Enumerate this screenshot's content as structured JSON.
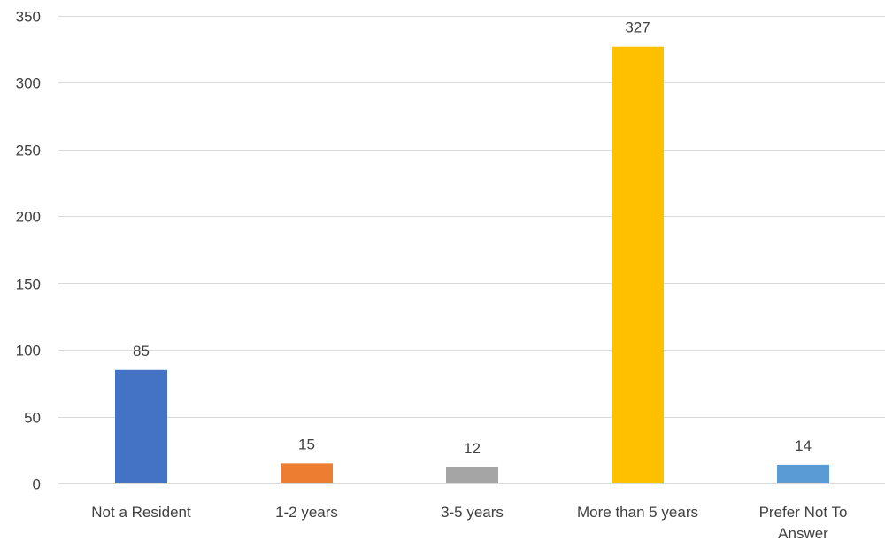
{
  "chart_data": {
    "type": "bar",
    "categories": [
      [
        "Not a Resident"
      ],
      [
        "1-2 years"
      ],
      [
        "3-5 years"
      ],
      [
        "More than 5 years"
      ],
      [
        "Prefer Not To",
        "Answer"
      ]
    ],
    "values": [
      85,
      15,
      12,
      327,
      14
    ],
    "colors": [
      "#4472c4",
      "#ed7d31",
      "#a5a5a5",
      "#ffc000",
      "#5b9bd5"
    ],
    "title": "",
    "xlabel": "",
    "ylabel": "",
    "ylim": [
      0,
      350
    ],
    "yticks": [
      0,
      50,
      100,
      150,
      200,
      250,
      300,
      350
    ],
    "grid": true,
    "legend": false,
    "data_labels": true
  }
}
